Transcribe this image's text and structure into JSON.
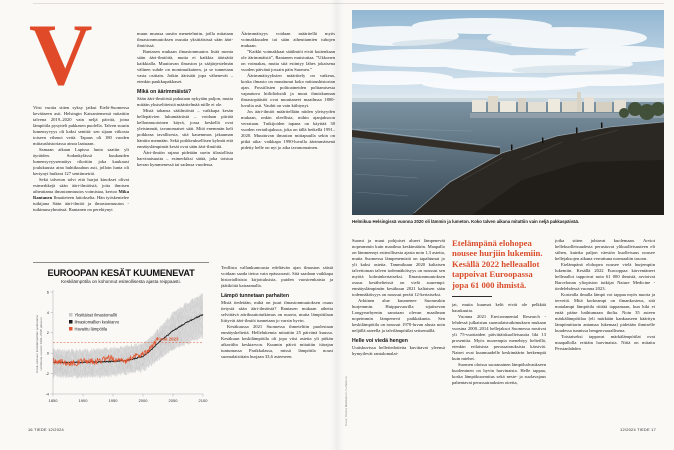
{
  "page": {
    "footer_left": "16  TIEDE  12/2024",
    "footer_right": "12/2024  TIEDE  17"
  },
  "left_page": {
    "dropcap": "V"
  },
  "right_page": {
    "pull_quote": "Etelämpänä elohopea nousee hurjiin lukemiin. Kesällä 2022 helleaallot tappoivat Euroopassa jopa 61 000 ihmistä.",
    "photo_caption": "Helmikuu Helsingissä vuonna 2020 oli lämmin ja lumeton. Koko talven aikana mitattiin vain neljä pakkaspäivää.",
    "photo_credit": "Kuva: Hanna Matikainen / Lehtikuva"
  },
  "colors": {
    "accent": "#e04a28",
    "quote": "#d94d2b"
  },
  "columns": {
    "lp_col1": [
      {
        "t": "p",
        "text": "Viisi vuotta sitten syksy jatkui Etelä-Suomessa kevääseen asti. Helsingin Kaisaniemessä mitattiin talvena 2019–2020 vain neljä päivää, joina lämpötila pysytteli pakkasen puolella. Talven suurin lumensyvyys oli kaksi senttiä: sen sijaan viikosta toiseen vihmoi vettä. Tapaus oli 180 vuoden mittaushistoriassa ainoa laatuaan."
      },
      {
        "t": "p",
        "text": "Samaan aikaan Lapissa lunta saatiin yli äyräiden. Sodankylässä kuukauden lumensyvyysennätys rikottiin joka kuukausi joulukuusta aina huhtikuuhun asti, jolloin lunta oli kertynyt huikeat 127 senttimetriä."
      },
      {
        "t": "p",
        "b": "Mika Rantanen",
        "text": "Sekä talveton talvi että hurjat kinokset olivat esimerkkejä sään ääri-ilmiöistä, joita ihmisen aiheuttama ilmastonmuutos voimistaa, kertoo Mika Rantanen Ilmatieteen laitokselta. Hän työskentelee tutkijana Sään ääri-ilmiöt ja ilmastonmuutos -tutkimusryhmässä. Rantanen on perehtynyt"
      }
    ],
    "lp_col2": [
      {
        "t": "p",
        "text": "muun muassa uusiin menetelmiin, joilla mitataan ilmastonmuutoksen osuutta yksittäisissä sään ääri-ilmiöissä."
      },
      {
        "t": "p",
        "text": "Rantasen mukaan ilmastonmuutos lisää monia sään ääri-ilmiöitä, mutta ei kaikkia äärisäitä kaikkialla. Muuttuvan ilmaston ja sääjärjestelmän välinen suhde on monimutkainen, ja se tunnetaan vasta osittain. Jotkin äärisäät jopa vähenevät – etenkin paukkupakkaset."
      },
      {
        "t": "h",
        "text": "Mikä on äärimmäistä?"
      },
      {
        "t": "p",
        "text": "Sään ääri-ilmiöistä puhutaan nykyään paljon, mutta mitään yksiselitteistä määritelmää niille ei ole."
      },
      {
        "t": "p",
        "text": "Mistä tahansa sääilmiöstä – vaikkapa kesän hellepäivien lukumäärästä – voidaan piirtää kellonmuotoinen käyrä, jossa keskellä ovat yleisimmät, tavanomaiset säät. Mitä enemmän keli poikkeaa tavallisesta, sitä kauemmas jakauman häntiin mennään. Sekä poikkeuksellisen kylmät että ennätyslämpimät kesät ovat sään ääri-ilmiöitä."
      },
      {
        "t": "p",
        "text": "Ääri-ilmiön rajana pidetään usein tilastollista harvinaisuutta – esimerkiksi säätä, joka toistuu kerran kymmenessä tai sadassa vuodessa."
      }
    ],
    "lp_col3": [
      {
        "t": "p",
        "text": "Äärimmäisyys voidaan määritellä myös voimakkuuden tai sään aiheuttamien tuhojen mukaan."
      },
      {
        "t": "p",
        "text": "”Kaikki voimakkaat sääilmiöt eivät kuitenkaan ole äärimmäisiä”, Rantanen muistuttaa. ”Ukkonen on voimakas, mutta sitä esiintyy lähes jokaisena vuoden päivänä jossain päin Suomea.”"
      },
      {
        "t": "p",
        "text": "Äärimmäisyyksien määrittely on vaikeaa, koska ilmasto on muuttunut koko mittaushistorian ajan. Fossiilisten polttoaineiden polttamisesta vapautuva hiilidioksidi ja muut ihmiskunnan ilmastopäästöt ovat muuttaneet maailmaa 1800-luvulta asti. Vauhti on vain kiihtynyt."
      },
      {
        "t": "p",
        "text": "Jos ääri-ilmiöt määritellään niiden yleisyyden mukaan, onkin oleellista, mihin ajanjaksoon verrataan. Tutkijoiden tapana on käyttää 30 vuoden vertailujaksoa, joka on tällä hetkellä 1991–2020. Muuttuvan ilmaston mittapuulla sekin on pitkä aika: vaikkapa 1990-luvulla äärimmäisenä pidetty helle on nyt jo aika tavanomainen."
      }
    ],
    "lp_col3b": [
      {
        "t": "p",
        "text": "Teollista vallankumousta edeltävän ajan ilmaston säistä voidaan saada tietoa vain epäsuorasti. Sitä saadaan vaikkapa historiallisista kirjoituksista, puiden vuosirenkaista ja jäätiköitä kairaamalla."
      },
      {
        "t": "h",
        "text": "Lämpö tunnetaan parhaiten"
      },
      {
        "t": "p",
        "text": "Mistä tiedetään, mikä on juuri ilmastonmuutoksen osuus tietystä sään ääri-ilmiöstä? Rantasen mukaan aihetta selvittävä attribuutiotutkimus on nuorta, mutta lämpötilaan liittyvät ääri-ilmiöt tunnetaan jo varsin hyvin."
      },
      {
        "t": "p",
        "text": "Kesäkuussa 2021 Suomessa ihmeteltiin puolestaan ennätyshelteitä. Hellelukemia mitattiin 25 päivänä kuussa. Kesäkuun keskilämpötila oli jopa viisi astetta yli pitkän aikavälin keskiarvon. Kuumin päivä mitattiin itärajan tuntumassa Parikkalassa, missä lämpötila nousi suomalaisittain hurjaan 33,6 asteeseen."
      }
    ],
    "rp_col1": [
      {
        "t": "p",
        "text": "Suomi ja muut pohjoiset alueet lämpenevät nopeammin kuin maailma keskimäärin. Maapallo on lämmennyt esiteollisesta ajasta noin 1,3 astetta, mutta Suomessa lämpenemistä on tapahtunut jo yli kaksi astetta. Tammikuun 2020 kaltaisen talvettoman talven todennäköisyys on noussut sen myötä kolminkertaiseksi. Ilmastonmuutoksen osuus kesähelteissä on vielä suurempi: ennätyslämpimän kesäkuun 2021 kaltaisen sään todennäköisyys on noussut peräti 12-kertaiseksi."
      },
      {
        "t": "p",
        "text": "Arktinen alue kuumenee Suomeakin hurjemmin. Huippuvuorilla sijaitsevan Longyearbyenin sanotaan olevan maailman nopeimmin lämpenevä paikkakunta. Sen keskilämpötila on noussut 1970-luvun alusta noin neljällä asteella ja talvilämpötilat seitsemällä."
      },
      {
        "t": "h",
        "text": "Helle voi viedä hengen"
      },
      {
        "t": "p",
        "text": "Uutiskuvissa helletiedotteita kuvittavat yleensä hymyilevät rantalomalai-"
      }
    ],
    "rp_col2": [
      {
        "t": "p",
        "text": "jat, mutta kuumat kelit eivät ole pelkkää hauskuutta."
      },
      {
        "t": "p",
        "text": "Vuonna 2021 Environmental Research -lehdessä julkaistun suomalaistutkimuksen mukaan vuosina 2000–2014 hellejaksot Suomessa nostivat yli 75-vuotiaiden päivittäiskuolleisuutta liki 13 prosenttia. Myös nuorempia menehtyy helteillä, etenkin erilaisista perussairauksista kärsiviä. Naiset ovat kuumuudelle keskimäärin herkempiä kuin miehet."
      },
      {
        "t": "p",
        "text": "Suomen oloissa suoranainen lämpöhalvaukseen kuoleminen on hyvin harvinaista. Helle tappaa, koska lämpökuormitus sekä neste- ja suolavajaus pahentavat perussairauksien oireita,"
      }
    ],
    "rp_col3": [
      {
        "t": "p",
        "text": "jotka sitten johtavat kuolemaan. Arviot hellekuolleisuudesta perustuvat ylikuolleisuuteen eli siihen, kuinka paljon väestön kuolleisuus nousee hellejaksojen aikana verrattuna normaaliin tasoon."
      },
      {
        "t": "p",
        "text": "Etelämpänä elohopea nousee vielä hurjempiin lukemiin. Kesällä 2022 Eurooppaa kärventäneet helleaallot tappoivat noin 61 000 ihmistä, arvioivat Barcelonan yliopiston tutkijat Nature Medicine -tiedelehdessä vuonna 2023."
      },
      {
        "t": "p",
        "text": "Kostealla ilmalla lämpö voi tappaa myös nuoria ja terveitä. Mitä korkeampi on ilmankosteus, sitä matalampi lämpötila riittää tappamaan, kun hiki ei enää pääse haihtumaan iholta. Noin 35 asteen märkälämpötilaa (eli märkään kankaaseen käärityn lämpömittarin antamaa lukemaa) pidetään ihmiselle kuudessa tunnissa hengenvaarallisena."
      },
      {
        "t": "p",
        "text": "Toistaiseksi tappavat märkälämpötilat ovat maapallolla erittäin harvinaisia. Niitä on mitattu Persianlahden"
      }
    ]
  },
  "chart_data": {
    "type": "line",
    "title": "EUROOPAN KESÄT KUUMENEVAT",
    "subtitle": "Keskilämpötila on kohonnut esiteollisesta ajasta reippaasti.",
    "ylabel_lines": [
      "Kesä–elokuun keskilämpötilan poikkeama",
      "verrattuna vuosien 1991–2020 jaksoon"
    ],
    "xlim": [
      1850,
      2100
    ],
    "ylim": [
      -4,
      6
    ],
    "yticks": [
      6,
      4,
      2,
      0,
      -2,
      -4
    ],
    "xticks": [
      1850,
      1900,
      1950,
      2000,
      2050,
      2100
    ],
    "grid": false,
    "legend_position": "upper-left",
    "legend": [
      {
        "label": "Yksittäiset ilmastomallit",
        "color": "#c9c9c9"
      },
      {
        "label": "Ilmastomallien keskiarvo",
        "color": "#1c1c1c"
      },
      {
        "label": "Havaittu lämpötila",
        "color": "#e0552f"
      }
    ],
    "annotation": {
      "label": "Kesä 2023",
      "value": 1.05,
      "style": "dashed",
      "color": "#e0552f"
    },
    "series": [
      {
        "name": "Ilmastomallien keskiarvo",
        "x": [
          1850,
          1875,
          1900,
          1925,
          1950,
          1975,
          2000,
          2010,
          2023,
          2050,
          2075,
          2100
        ],
        "values": [
          -0.9,
          -0.9,
          -0.9,
          -0.85,
          -0.8,
          -0.7,
          -0.3,
          0.1,
          0.9,
          2.2,
          3.1,
          3.8
        ]
      },
      {
        "name": "Havaittu lämpötila",
        "x": [
          1850,
          1875,
          1900,
          1925,
          1950,
          1975,
          2000,
          2010,
          2024
        ],
        "values": [
          -0.85,
          -0.95,
          -0.9,
          -0.65,
          -0.6,
          -0.7,
          -0.1,
          0.35,
          1.5
        ]
      },
      {
        "name": "Mallien vaihteluvälin yläraja",
        "x": [
          1850,
          1900,
          1950,
          2000,
          2025,
          2050,
          2075,
          2100
        ],
        "values": [
          0.35,
          0.3,
          0.45,
          0.95,
          2.3,
          3.9,
          5.0,
          5.9
        ]
      },
      {
        "name": "Mallien vaihteluvälin alaraja",
        "x": [
          1850,
          1900,
          1950,
          2000,
          2025,
          2050,
          2075,
          2100
        ],
        "values": [
          -2.3,
          -2.35,
          -2.2,
          -1.7,
          -0.7,
          0.3,
          1.0,
          1.6
        ]
      }
    ]
  }
}
